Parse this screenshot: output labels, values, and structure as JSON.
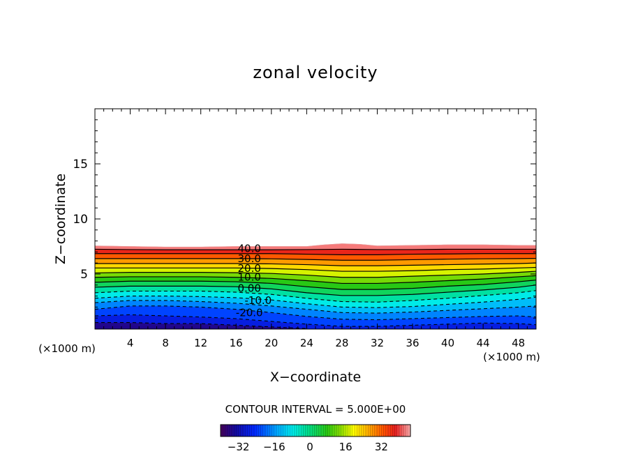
{
  "chart_data": {
    "type": "contour",
    "title": "zonal velocity",
    "xlabel": "X−coordinate",
    "ylabel": "Z−coordinate",
    "x_unit_left": "(×1000 m)",
    "x_unit_right": "(×1000 m)",
    "xlim": [
      0,
      50
    ],
    "ylim": [
      0,
      20
    ],
    "x_ticks": [
      "4",
      "8",
      "12",
      "16",
      "20",
      "24",
      "28",
      "32",
      "36",
      "40",
      "44",
      "48"
    ],
    "x_tick_values": [
      4,
      8,
      12,
      16,
      20,
      24,
      28,
      32,
      36,
      40,
      44,
      48
    ],
    "y_ticks": [
      "5",
      "10",
      "15"
    ],
    "y_tick_values": [
      5,
      10,
      15
    ],
    "contour_interval_text": "CONTOUR INTERVAL = 5.000E+00",
    "contour_interval": 5.0,
    "value_range": [
      -40,
      45
    ],
    "contour_labels": [
      {
        "text": "40.0",
        "x": 17.5,
        "z": 7.3
      },
      {
        "text": "30.0",
        "x": 17.5,
        "z": 6.4
      },
      {
        "text": "20.0",
        "x": 17.5,
        "z": 5.5
      },
      {
        "text": "10.0",
        "x": 17.5,
        "z": 4.7
      },
      {
        "text": "0.00",
        "x": 17.5,
        "z": 3.7
      },
      {
        "text": "-10.0",
        "x": 18.5,
        "z": 2.6
      },
      {
        "text": "-20.0",
        "x": 17.5,
        "z": 1.5
      }
    ],
    "contours": [
      {
        "value": -30,
        "style": "dashed",
        "points": [
          [
            0,
            0.6
          ],
          [
            4,
            0.6
          ],
          [
            8,
            0.5
          ],
          [
            12,
            0.5
          ],
          [
            16,
            0.35
          ],
          [
            20,
            0.2
          ],
          [
            24,
            0.05
          ]
        ]
      },
      {
        "value": -25,
        "style": "dashed",
        "points": [
          [
            0,
            1.2
          ],
          [
            4,
            1.3
          ],
          [
            8,
            1.2
          ],
          [
            12,
            1.1
          ],
          [
            16,
            0.95
          ],
          [
            20,
            0.7
          ],
          [
            24,
            0.45
          ],
          [
            28,
            0.25
          ],
          [
            32,
            0.25
          ],
          [
            36,
            0.35
          ],
          [
            40,
            0.45
          ],
          [
            44,
            0.55
          ],
          [
            48,
            0.5
          ],
          [
            50,
            0.4
          ]
        ]
      },
      {
        "value": -20,
        "style": "dashed",
        "points": [
          [
            0,
            1.8
          ],
          [
            4,
            2.1
          ],
          [
            8,
            2.1
          ],
          [
            12,
            2.0
          ],
          [
            16,
            1.8
          ],
          [
            20,
            1.5
          ],
          [
            24,
            1.15
          ],
          [
            28,
            0.9
          ],
          [
            32,
            0.85
          ],
          [
            36,
            0.95
          ],
          [
            40,
            1.05
          ],
          [
            44,
            1.15
          ],
          [
            48,
            1.2
          ],
          [
            50,
            1.1
          ]
        ]
      },
      {
        "value": -15,
        "style": "dashed",
        "points": [
          [
            0,
            2.4
          ],
          [
            4,
            2.6
          ],
          [
            8,
            2.6
          ],
          [
            12,
            2.5
          ],
          [
            16,
            2.35
          ],
          [
            20,
            2.1
          ],
          [
            24,
            1.8
          ],
          [
            28,
            1.5
          ],
          [
            32,
            1.45
          ],
          [
            36,
            1.55
          ],
          [
            40,
            1.7
          ],
          [
            44,
            1.85
          ],
          [
            48,
            2.0
          ],
          [
            50,
            2.1
          ]
        ]
      },
      {
        "value": -10,
        "style": "dashed",
        "points": [
          [
            0,
            2.8
          ],
          [
            4,
            3.0
          ],
          [
            8,
            3.0
          ],
          [
            12,
            2.95
          ],
          [
            16,
            2.85
          ],
          [
            20,
            2.65
          ],
          [
            24,
            2.3
          ],
          [
            28,
            2.0
          ],
          [
            32,
            1.95
          ],
          [
            36,
            2.05
          ],
          [
            40,
            2.25
          ],
          [
            44,
            2.45
          ],
          [
            48,
            2.7
          ],
          [
            50,
            2.9
          ]
        ]
      },
      {
        "value": -5,
        "style": "dashed",
        "points": [
          [
            0,
            3.3
          ],
          [
            4,
            3.45
          ],
          [
            8,
            3.45
          ],
          [
            12,
            3.45
          ],
          [
            16,
            3.35
          ],
          [
            20,
            3.15
          ],
          [
            24,
            2.8
          ],
          [
            28,
            2.5
          ],
          [
            32,
            2.45
          ],
          [
            36,
            2.6
          ],
          [
            40,
            2.8
          ],
          [
            44,
            3.05
          ],
          [
            48,
            3.3
          ],
          [
            50,
            3.5
          ]
        ]
      },
      {
        "value": 0,
        "style": "solid",
        "points": [
          [
            0,
            3.8
          ],
          [
            4,
            3.9
          ],
          [
            8,
            3.9
          ],
          [
            12,
            3.9
          ],
          [
            16,
            3.85
          ],
          [
            20,
            3.65
          ],
          [
            24,
            3.3
          ],
          [
            28,
            3.05
          ],
          [
            32,
            3.05
          ],
          [
            36,
            3.15
          ],
          [
            40,
            3.35
          ],
          [
            44,
            3.55
          ],
          [
            48,
            3.8
          ],
          [
            50,
            4.0
          ]
        ]
      },
      {
        "value": 5,
        "style": "solid",
        "points": [
          [
            0,
            4.25
          ],
          [
            4,
            4.35
          ],
          [
            8,
            4.35
          ],
          [
            12,
            4.35
          ],
          [
            16,
            4.3
          ],
          [
            20,
            4.15
          ],
          [
            24,
            3.85
          ],
          [
            28,
            3.6
          ],
          [
            32,
            3.6
          ],
          [
            36,
            3.7
          ],
          [
            40,
            3.9
          ],
          [
            44,
            4.05
          ],
          [
            48,
            4.3
          ],
          [
            50,
            4.45
          ]
        ]
      },
      {
        "value": 10,
        "style": "solid",
        "points": [
          [
            0,
            4.7
          ],
          [
            4,
            4.75
          ],
          [
            8,
            4.75
          ],
          [
            12,
            4.75
          ],
          [
            16,
            4.7
          ],
          [
            20,
            4.6
          ],
          [
            24,
            4.4
          ],
          [
            28,
            4.15
          ],
          [
            32,
            4.15
          ],
          [
            36,
            4.25
          ],
          [
            40,
            4.4
          ],
          [
            44,
            4.55
          ],
          [
            48,
            4.75
          ],
          [
            50,
            4.85
          ]
        ]
      },
      {
        "value": 15,
        "style": "solid",
        "points": [
          [
            0,
            5.1
          ],
          [
            4,
            5.15
          ],
          [
            8,
            5.15
          ],
          [
            12,
            5.15
          ],
          [
            16,
            5.12
          ],
          [
            20,
            5.05
          ],
          [
            24,
            4.9
          ],
          [
            28,
            4.7
          ],
          [
            32,
            4.7
          ],
          [
            36,
            4.8
          ],
          [
            40,
            4.9
          ],
          [
            44,
            5.0
          ],
          [
            48,
            5.15
          ],
          [
            50,
            5.25
          ]
        ]
      },
      {
        "value": 20,
        "style": "solid",
        "points": [
          [
            0,
            5.55
          ],
          [
            4,
            5.55
          ],
          [
            8,
            5.55
          ],
          [
            12,
            5.55
          ],
          [
            16,
            5.55
          ],
          [
            20,
            5.5
          ],
          [
            24,
            5.4
          ],
          [
            28,
            5.25
          ],
          [
            32,
            5.25
          ],
          [
            36,
            5.3
          ],
          [
            40,
            5.4
          ],
          [
            44,
            5.45
          ],
          [
            48,
            5.55
          ],
          [
            50,
            5.6
          ]
        ]
      },
      {
        "value": 25,
        "style": "solid",
        "points": [
          [
            0,
            5.95
          ],
          [
            4,
            5.95
          ],
          [
            8,
            5.95
          ],
          [
            12,
            5.95
          ],
          [
            16,
            5.95
          ],
          [
            20,
            5.92
          ],
          [
            24,
            5.85
          ],
          [
            28,
            5.75
          ],
          [
            32,
            5.75
          ],
          [
            36,
            5.8
          ],
          [
            40,
            5.85
          ],
          [
            44,
            5.9
          ],
          [
            48,
            5.95
          ],
          [
            50,
            6.0
          ]
        ]
      },
      {
        "value": 30,
        "style": "solid",
        "points": [
          [
            0,
            6.4
          ],
          [
            4,
            6.4
          ],
          [
            8,
            6.4
          ],
          [
            12,
            6.4
          ],
          [
            16,
            6.4
          ],
          [
            20,
            6.38
          ],
          [
            24,
            6.32
          ],
          [
            28,
            6.25
          ],
          [
            32,
            6.25
          ],
          [
            36,
            6.3
          ],
          [
            40,
            6.35
          ],
          [
            44,
            6.38
          ],
          [
            48,
            6.4
          ],
          [
            50,
            6.42
          ]
        ]
      },
      {
        "value": 35,
        "style": "solid",
        "points": [
          [
            0,
            6.85
          ],
          [
            4,
            6.85
          ],
          [
            8,
            6.85
          ],
          [
            12,
            6.85
          ],
          [
            16,
            6.85
          ],
          [
            20,
            6.85
          ],
          [
            24,
            6.8
          ],
          [
            28,
            6.75
          ],
          [
            32,
            6.75
          ],
          [
            36,
            6.8
          ],
          [
            40,
            6.82
          ],
          [
            44,
            6.85
          ],
          [
            48,
            6.85
          ],
          [
            50,
            6.85
          ]
        ]
      },
      {
        "value": 40,
        "style": "solid",
        "points": [
          [
            0,
            7.25
          ],
          [
            4,
            7.22
          ],
          [
            8,
            7.2
          ],
          [
            12,
            7.2
          ],
          [
            16,
            7.2
          ],
          [
            20,
            7.2
          ],
          [
            24,
            7.22
          ],
          [
            28,
            7.25
          ],
          [
            32,
            7.22
          ],
          [
            36,
            7.22
          ],
          [
            40,
            7.25
          ],
          [
            44,
            7.25
          ],
          [
            48,
            7.25
          ],
          [
            50,
            7.25
          ]
        ]
      }
    ],
    "top_boundary": [
      [
        0,
        7.55
      ],
      [
        4,
        7.5
      ],
      [
        8,
        7.45
      ],
      [
        12,
        7.45
      ],
      [
        16,
        7.5
      ],
      [
        20,
        7.5
      ],
      [
        24,
        7.5
      ],
      [
        26,
        7.65
      ],
      [
        28,
        7.75
      ],
      [
        30,
        7.7
      ],
      [
        32,
        7.55
      ],
      [
        36,
        7.6
      ],
      [
        40,
        7.65
      ],
      [
        44,
        7.65
      ],
      [
        48,
        7.6
      ],
      [
        50,
        7.6
      ]
    ],
    "colorbar": {
      "ticks": [
        "−32",
        "−16",
        "0",
        "16",
        "32"
      ],
      "tick_values": [
        -32,
        -16,
        0,
        16,
        32
      ],
      "range": [
        -40,
        45
      ]
    }
  }
}
